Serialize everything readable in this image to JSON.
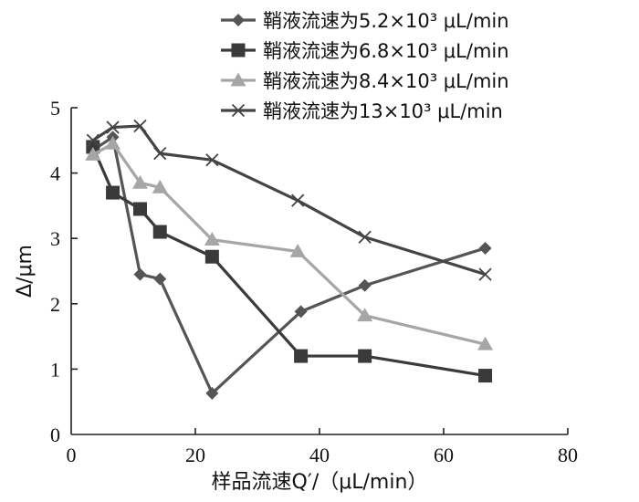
{
  "chart_data": {
    "type": "line",
    "xlabel": "样品流速Q′/（μL/min）",
    "ylabel": "Δ/μm",
    "xlim": [
      0,
      80
    ],
    "ylim": [
      0,
      5
    ],
    "xticks": [
      0,
      20,
      40,
      60,
      80
    ],
    "yticks": [
      0,
      1,
      2,
      3,
      4,
      5
    ],
    "grid": false,
    "legend_position": "top-right",
    "series": [
      {
        "name": "鞘液流速为5.2×10³ μL/min",
        "color": "#555555",
        "marker": "diamond",
        "x": [
          3.5,
          6.7,
          11.1,
          14.3,
          22.7,
          37.0,
          47.3,
          66.7
        ],
        "y": [
          4.35,
          4.55,
          2.45,
          2.38,
          0.63,
          1.88,
          2.28,
          2.85
        ]
      },
      {
        "name": "鞘液流速为6.8×10³ μL/min",
        "color": "#3a3a3a",
        "marker": "square",
        "x": [
          3.5,
          6.7,
          11.1,
          14.3,
          22.7,
          37.0,
          47.3,
          66.7
        ],
        "y": [
          4.4,
          3.7,
          3.45,
          3.1,
          2.72,
          1.2,
          1.2,
          0.9
        ]
      },
      {
        "name": "鞘液流速为8.4×10³ μL/min",
        "color": "#a6a6a6",
        "marker": "triangle",
        "x": [
          3.5,
          6.7,
          11.1,
          14.3,
          22.7,
          36.5,
          47.3,
          66.7
        ],
        "y": [
          4.28,
          4.45,
          3.85,
          3.78,
          2.98,
          2.8,
          1.82,
          1.38
        ]
      },
      {
        "name": "鞘液流速为13×10³ μL/min",
        "color": "#444444",
        "marker": "x",
        "x": [
          3.5,
          6.7,
          11.1,
          14.3,
          22.7,
          36.5,
          47.3,
          66.7
        ],
        "y": [
          4.5,
          4.7,
          4.72,
          4.3,
          4.2,
          3.58,
          3.02,
          2.45
        ]
      }
    ]
  }
}
